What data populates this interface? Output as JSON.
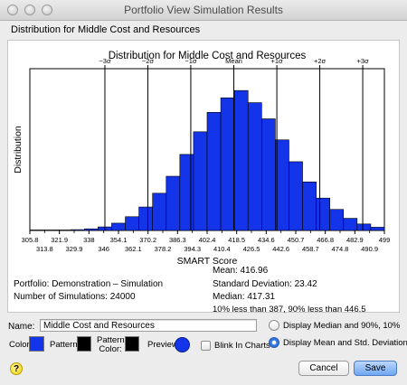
{
  "window": {
    "title": "Portfolio View Simulation Results"
  },
  "header": {
    "subtitle": "Distribution for Middle Cost and Resources"
  },
  "chart_data": {
    "type": "bar",
    "title": "Distribution for Middle Cost and Resources",
    "xlabel": "SMART Score",
    "ylabel": "Distribution",
    "bar_color": "#1434ea",
    "x_ticks_top": [
      "305.8",
      "321.9",
      "338",
      "354.1",
      "370.2",
      "386.3",
      "402.4",
      "418.5",
      "434.6",
      "450.7",
      "466.8",
      "482.9",
      "499"
    ],
    "x_ticks_bottom": [
      "313.8",
      "329.9",
      "346",
      "362.1",
      "378.2",
      "394.3",
      "410.4",
      "426.5",
      "442.6",
      "458.7",
      "474.8",
      "490.9"
    ],
    "bins_min": 305.8,
    "bins_max": 499,
    "values": [
      0.3,
      0.3,
      0.3,
      0.5,
      1,
      2.2,
      4.5,
      8.5,
      14.5,
      23,
      33.5,
      47,
      61,
      73,
      82,
      86.5,
      79,
      69,
      56,
      42.5,
      30,
      20,
      13,
      7.5,
      4,
      2
    ],
    "ylim": [
      0,
      100
    ],
    "sigma_lines": [
      {
        "label": "−3σ",
        "x": 346.7
      },
      {
        "label": "−2σ",
        "x": 370.1
      },
      {
        "label": "−1σ",
        "x": 393.5
      },
      {
        "label": "Mean",
        "x": 416.96
      },
      {
        "label": "+1σ",
        "x": 440.4
      },
      {
        "label": "+2σ",
        "x": 463.8
      },
      {
        "label": "+3σ",
        "x": 487.2
      }
    ]
  },
  "stats": {
    "portfolio": "Portfolio: Demonstration – Simulation",
    "simulations": "Number of Simulations: 24000",
    "mean": "Mean: 416.96",
    "std_dev": "Standard Deviation: 23.42",
    "median": "Median: 417.31",
    "percentiles": "10% less than 387, 90% less than 446.5"
  },
  "form": {
    "name_label": "Name:",
    "name_value": "Middle Cost and Resources",
    "radio_median": "Display Median and 90%, 10%",
    "radio_mean": "Display Mean and Std. Deviation",
    "color_label": "Color:",
    "pattern_label": "Pattern:",
    "pattern_color_label": "Pattern\nColor:",
    "preview_label": "Preview:",
    "blink_label": "Blink In Charts",
    "color_value": "#1434ea",
    "pattern_value": "#000000",
    "pattern_color_value": "#000000"
  },
  "buttons": {
    "cancel": "Cancel",
    "save": "Save",
    "help": "?"
  }
}
